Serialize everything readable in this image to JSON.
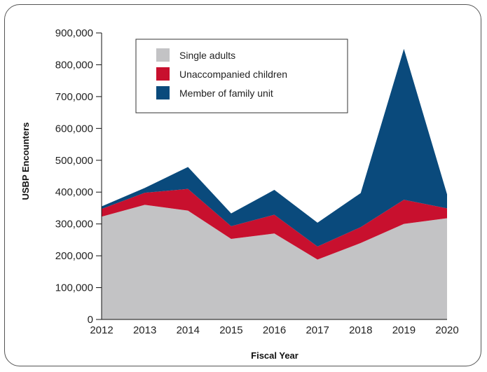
{
  "chart_data": {
    "type": "area",
    "stacked": true,
    "x": [
      "2012",
      "2013",
      "2014",
      "2015",
      "2016",
      "2017",
      "2018",
      "2019",
      "2020"
    ],
    "xlabel": "Fiscal Year",
    "ylabel": "USBP Encounters",
    "ylim": [
      0,
      900000
    ],
    "yticks": [
      "0",
      "100,000",
      "200,000",
      "300,000",
      "400,000",
      "500,000",
      "600,000",
      "700,000",
      "800,000",
      "900,000"
    ],
    "legend_position": "top-center",
    "series": [
      {
        "name": "Single adults",
        "color": "#c3c3c5",
        "values": [
          323000,
          360000,
          342000,
          253000,
          270000,
          188000,
          240000,
          300000,
          318000
        ]
      },
      {
        "name": "Unaccompanied children",
        "color": "#c8102e",
        "values": [
          24000,
          38000,
          68000,
          40000,
          59000,
          41000,
          50000,
          76000,
          31000
        ]
      },
      {
        "name": "Member of family unit",
        "color": "#0a4a7c",
        "values": [
          8000,
          15000,
          69000,
          40000,
          78000,
          75000,
          107000,
          474000,
          44000
        ]
      }
    ]
  }
}
